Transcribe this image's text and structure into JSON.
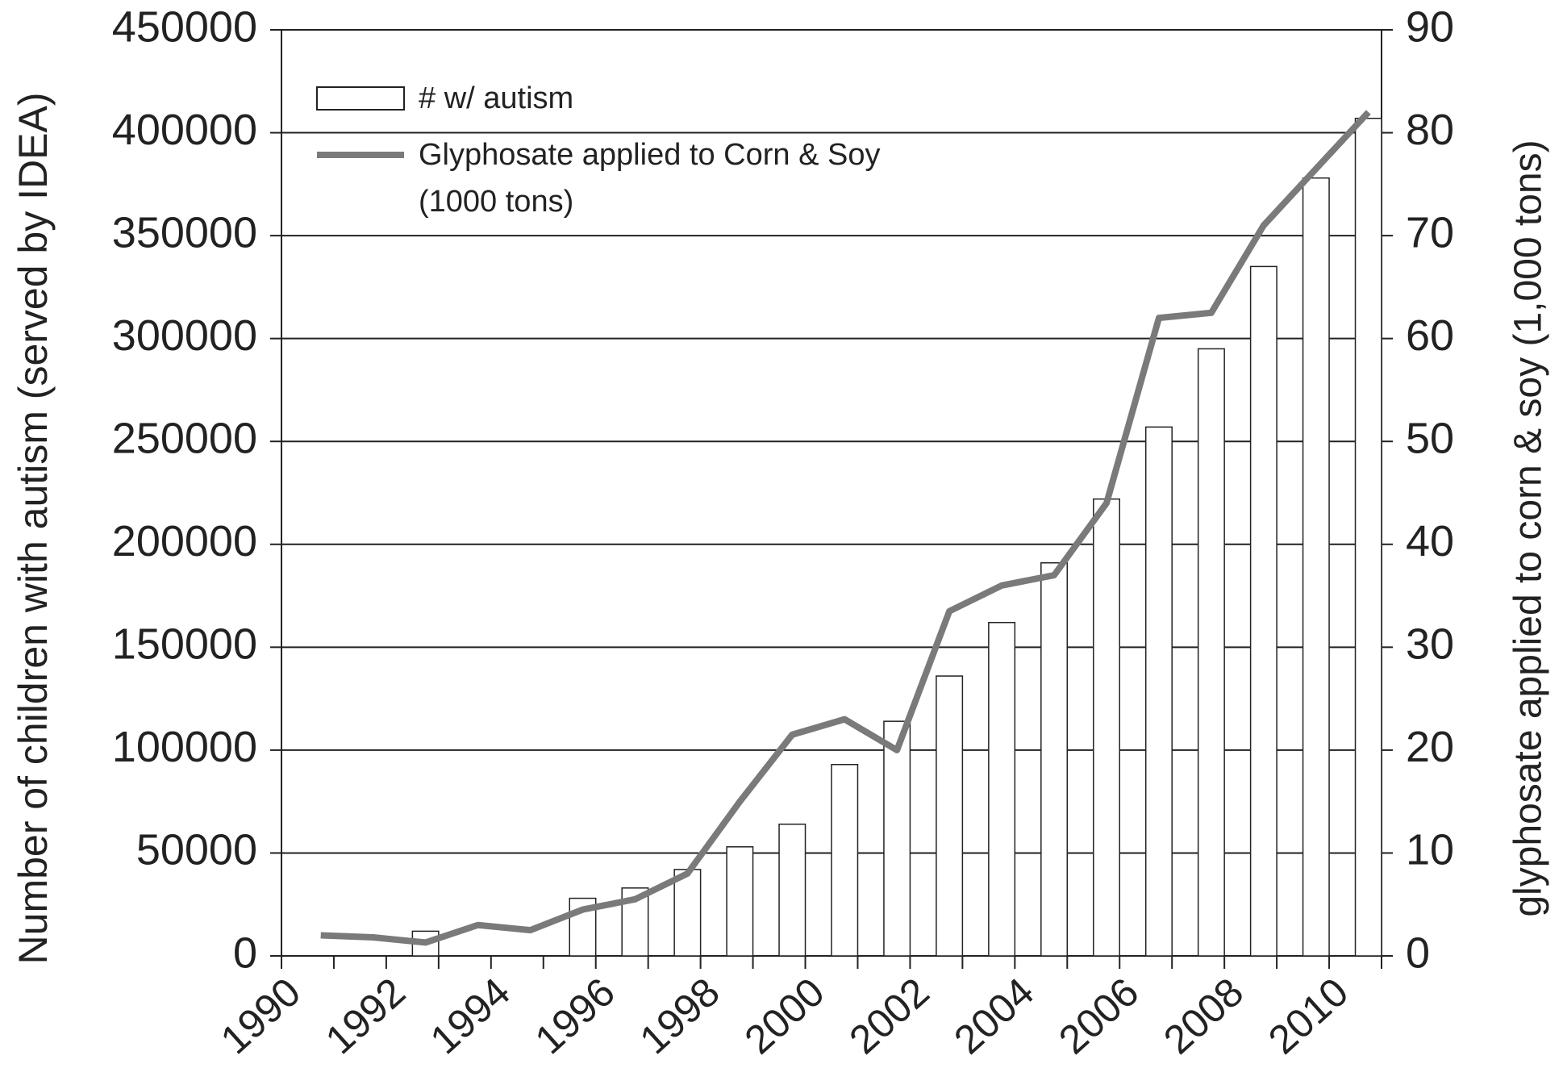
{
  "chart_data": {
    "type": "bar",
    "categories": [
      "1990",
      null,
      "1992",
      null,
      "1994",
      null,
      "1996",
      null,
      "1998",
      null,
      "2000",
      null,
      "2002",
      null,
      "2004",
      null,
      "2006",
      null,
      "2008",
      null,
      "2010"
    ],
    "series": [
      {
        "name": "# w/ autism",
        "type": "bar",
        "color": "#ffffff",
        "values": [
          null,
          null,
          12000,
          null,
          null,
          28000,
          33000,
          42000,
          53000,
          64000,
          93000,
          114000,
          136000,
          162000,
          191000,
          222000,
          257000,
          295000,
          335000,
          378000,
          407000
        ]
      },
      {
        "name": "Glyphosate applied to Corn & Soy (1000 tons)",
        "type": "line",
        "axis": "y2",
        "color": "#7a7a7a",
        "values": [
          2,
          1.8,
          1.3,
          3,
          2.5,
          4.5,
          5.5,
          8,
          15,
          21.5,
          23,
          20,
          33.5,
          36,
          37,
          44,
          62,
          62.5,
          71,
          76.5,
          82
        ]
      }
    ],
    "ylabel": "Number of children with autism (served by IDEA)",
    "y2label": "glyphosate applied to corn & soy (1,000 tons)",
    "ylim": [
      0,
      450000
    ],
    "yticks": [
      0,
      50000,
      100000,
      150000,
      200000,
      250000,
      300000,
      350000,
      400000,
      450000
    ],
    "y2lim": [
      0,
      90
    ],
    "y2ticks": [
      0,
      10,
      20,
      30,
      40,
      50,
      60,
      70,
      80,
      90
    ],
    "grid": true,
    "legend": "upper left"
  }
}
